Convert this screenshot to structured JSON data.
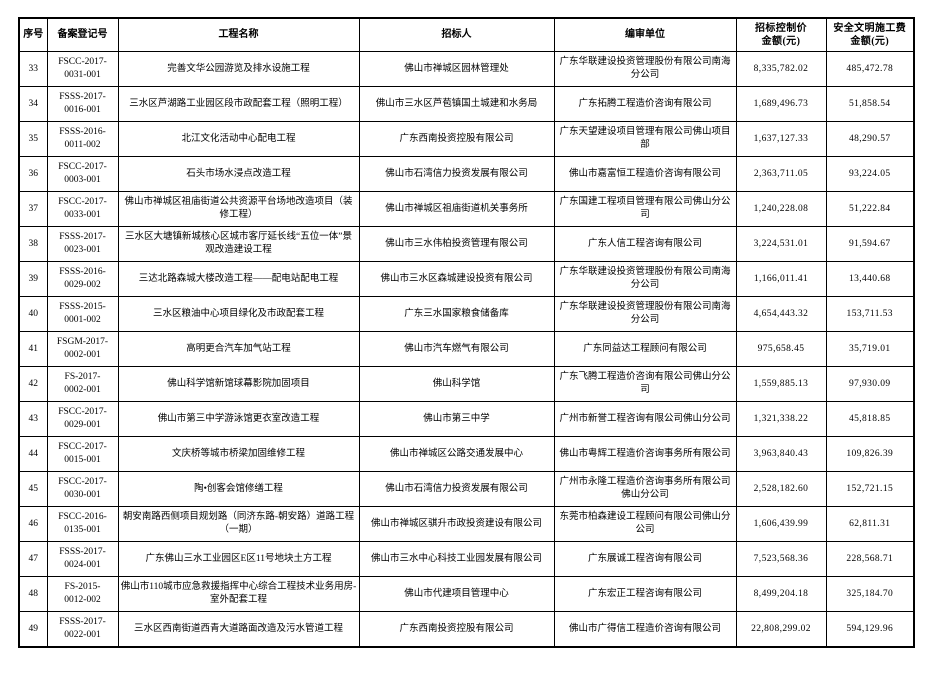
{
  "page": {
    "background_color": "#ffffff",
    "border_color": "#000000",
    "text_color": "#000000"
  },
  "table": {
    "columns": [
      {
        "key": "seq",
        "label": "序号"
      },
      {
        "key": "reg_no",
        "label": "备案登记号"
      },
      {
        "key": "project_name",
        "label": "工程名称"
      },
      {
        "key": "tenderer",
        "label": "招标人"
      },
      {
        "key": "review_unit",
        "label": "编审单位"
      },
      {
        "key": "control_price",
        "label": "招标控制价\n金额(元)"
      },
      {
        "key": "safety_fee",
        "label": "安全文明施工费\n金额(元)"
      }
    ],
    "rows": [
      {
        "seq": "33",
        "reg_no": "FSCC-2017-\n0031-001",
        "project_name": "完善文华公园游览及排水设施工程",
        "tenderer": "佛山市禅城区园林管理处",
        "review_unit": "广东华联建设投资管理股份有限公司南海分公司",
        "control_price": "8,335,782.02",
        "safety_fee": "485,472.78"
      },
      {
        "seq": "34",
        "reg_no": "FSSS-2017-\n0016-001",
        "project_name": "三水区芦湖路工业园区段市政配套工程（照明工程）",
        "tenderer": "佛山市三水区芦苞镇国土城建和水务局",
        "review_unit": "广东拓腾工程造价咨询有限公司",
        "control_price": "1,689,496.73",
        "safety_fee": "51,858.54"
      },
      {
        "seq": "35",
        "reg_no": "FSSS-2016-\n0011-002",
        "project_name": "北江文化活动中心配电工程",
        "tenderer": "广东西南投资控股有限公司",
        "review_unit": "广东天望建设项目管理有限公司佛山项目部",
        "control_price": "1,637,127.33",
        "safety_fee": "48,290.57"
      },
      {
        "seq": "36",
        "reg_no": "FSCC-2017-\n0003-001",
        "project_name": "石头市场水浸点改造工程",
        "tenderer": "佛山市石湾信力投资发展有限公司",
        "review_unit": "佛山市嘉富恒工程造价咨询有限公司",
        "control_price": "2,363,711.05",
        "safety_fee": "93,224.05"
      },
      {
        "seq": "37",
        "reg_no": "FSCC-2017-\n0033-001",
        "project_name": "佛山市禅城区祖庙街道公共资源平台场地改造项目（装修工程）",
        "tenderer": "佛山市禅城区祖庙街道机关事务所",
        "review_unit": "广东国建工程项目管理有限公司佛山分公司",
        "control_price": "1,240,228.08",
        "safety_fee": "51,222.84"
      },
      {
        "seq": "38",
        "reg_no": "FSSS-2017-\n0023-001",
        "project_name": "三水区大塘镇新城核心区城市客厅延长线“五位一体”景观改造建设工程",
        "tenderer": "佛山市三水伟柏投资管理有限公司",
        "review_unit": "广东人信工程咨询有限公司",
        "control_price": "3,224,531.01",
        "safety_fee": "91,594.67"
      },
      {
        "seq": "39",
        "reg_no": "FSSS-2016-\n0029-002",
        "project_name": "三达北路森城大楼改造工程——配电站配电工程",
        "tenderer": "佛山市三水区森城建设投资有限公司",
        "review_unit": "广东华联建设投资管理股份有限公司南海分公司",
        "control_price": "1,166,011.41",
        "safety_fee": "13,440.68"
      },
      {
        "seq": "40",
        "reg_no": "FSSS-2015-\n0001-002",
        "project_name": "三水区粮油中心项目绿化及市政配套工程",
        "tenderer": "广东三水国家粮食储备库",
        "review_unit": "广东华联建设投资管理股份有限公司南海分公司",
        "control_price": "4,654,443.32",
        "safety_fee": "153,711.53"
      },
      {
        "seq": "41",
        "reg_no": "FSGM-2017-\n0002-001",
        "project_name": "高明更合汽车加气站工程",
        "tenderer": "佛山市汽车燃气有限公司",
        "review_unit": "广东同益达工程顾问有限公司",
        "control_price": "975,658.45",
        "safety_fee": "35,719.01"
      },
      {
        "seq": "42",
        "reg_no": "FS-2017-\n0002-001",
        "project_name": "佛山科学馆新馆球幕影院加固项目",
        "tenderer": "佛山科学馆",
        "review_unit": "广东飞腾工程造价咨询有限公司佛山分公司",
        "control_price": "1,559,885.13",
        "safety_fee": "97,930.09"
      },
      {
        "seq": "43",
        "reg_no": "FSCC-2017-\n0029-001",
        "project_name": "佛山市第三中学游泳馆更衣室改造工程",
        "tenderer": "佛山市第三中学",
        "review_unit": "广州市新誉工程咨询有限公司佛山分公司",
        "control_price": "1,321,338.22",
        "safety_fee": "45,818.85"
      },
      {
        "seq": "44",
        "reg_no": "FSCC-2017-\n0015-001",
        "project_name": "文庆桥等城市桥梁加固维修工程",
        "tenderer": "佛山市禅城区公路交通发展中心",
        "review_unit": "佛山市粤辉工程造价咨询事务所有限公司",
        "control_price": "3,963,840.43",
        "safety_fee": "109,826.39"
      },
      {
        "seq": "45",
        "reg_no": "FSCC-2017-\n0030-001",
        "project_name": "陶•创客会馆修缮工程",
        "tenderer": "佛山市石湾信力投资发展有限公司",
        "review_unit": "广州市永隆工程造价咨询事务所有限公司佛山分公司",
        "control_price": "2,528,182.60",
        "safety_fee": "152,721.15"
      },
      {
        "seq": "46",
        "reg_no": "FSCC-2016-\n0135-001",
        "project_name": "朝安南路西侧项目规划路（同济东路-朝安路）道路工程（一期）",
        "tenderer": "佛山市禅城区骐升市政投资建设有限公司",
        "review_unit": "东莞市柏森建设工程顾问有限公司佛山分公司",
        "control_price": "1,606,439.99",
        "safety_fee": "62,811.31"
      },
      {
        "seq": "47",
        "reg_no": "FSSS-2017-\n0024-001",
        "project_name": "广东佛山三水工业园区E区11号地块土方工程",
        "tenderer": "佛山市三水中心科技工业园发展有限公司",
        "review_unit": "广东展诚工程咨询有限公司",
        "control_price": "7,523,568.36",
        "safety_fee": "228,568.71"
      },
      {
        "seq": "48",
        "reg_no": "FS-2015-\n0012-002",
        "project_name": "佛山市110城市应急救援指挥中心综合工程技术业务用房-室外配套工程",
        "tenderer": "佛山市代建项目管理中心",
        "review_unit": "广东宏正工程咨询有限公司",
        "control_price": "8,499,204.18",
        "safety_fee": "325,184.70"
      },
      {
        "seq": "49",
        "reg_no": "FSSS-2017-\n0022-001",
        "project_name": "三水区西南街道西青大道路面改造及污水管道工程",
        "tenderer": "广东西南投资控股有限公司",
        "review_unit": "佛山市广得信工程造价咨询有限公司",
        "control_price": "22,808,299.02",
        "safety_fee": "594,129.96"
      }
    ]
  }
}
